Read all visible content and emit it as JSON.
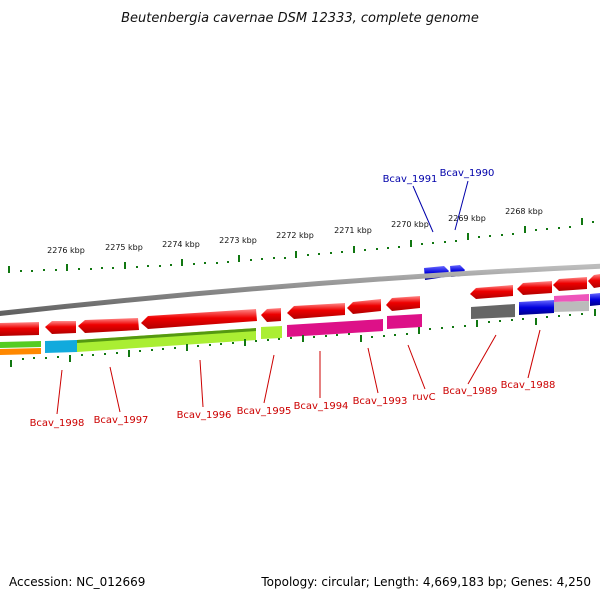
{
  "title": "Beutenbergia cavernae DSM 12333, complete genome",
  "footer": {
    "accession": "Accession: NC_012669",
    "topology": "Topology: circular; Length: 4,669,183 bp; Genes: 4,250"
  },
  "kbp_labels": [
    "2276 kbp",
    "2275 kbp",
    "2274 kbp",
    "2273 kbp",
    "2272 kbp",
    "2271 kbp",
    "2270 kbp",
    "2269 kbp",
    "2268 kbp"
  ],
  "gene_labels_below": [
    "Bcav_1998",
    "Bcav_1997",
    "Bcav_1996",
    "Bcav_1995",
    "Bcav_1994",
    "Bcav_1993",
    "ruvC",
    "Bcav_1989",
    "Bcav_1988"
  ],
  "gene_labels_above": [
    "Bcav_1991",
    "Bcav_1990"
  ],
  "colors": {
    "gene_red": "#ee0000",
    "gene_blue": "#0000dd",
    "tick_green": "#117711",
    "backbone": "#888888",
    "label_red": "#cc0000",
    "label_blue": "#0000aa"
  }
}
